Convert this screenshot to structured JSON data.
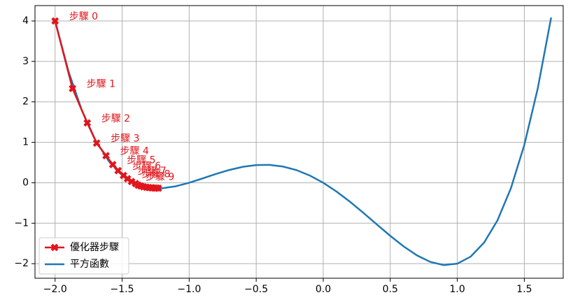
{
  "chart_data": {
    "type": "line",
    "xlim": [
      -2.15,
      1.79
    ],
    "ylim": [
      -2.36,
      4.38
    ],
    "xticks": [
      {
        "value": -2,
        "label": "−2.0"
      },
      {
        "value": -1.5,
        "label": "−1.5"
      },
      {
        "value": -1,
        "label": "−1.0"
      },
      {
        "value": -0.5,
        "label": "−0.5"
      },
      {
        "value": 0,
        "label": "0.0"
      },
      0.5,
      {
        "value": 1,
        "label": "1.0"
      },
      1.5
    ],
    "yticks": [
      {
        "value": -2,
        "label": "−2"
      },
      {
        "value": -1,
        "label": "−1"
      },
      0,
      1,
      2,
      3,
      4
    ],
    "grid": true,
    "legend": "lower left",
    "series": [
      {
        "name": "優化器步驟",
        "color": "#e0161c",
        "marker": "X",
        "x": [
          -2,
          -1.87,
          -1.76,
          -1.69,
          -1.62,
          -1.57,
          -1.53,
          -1.49,
          -1.46,
          -1.43,
          -1.4,
          -1.38,
          -1.36,
          -1.34,
          -1.32,
          -1.3,
          -1.28,
          -1.26,
          -1.245,
          -1.23
        ],
        "values": [
          4,
          2.33,
          1.48,
          0.98,
          0.67,
          0.45,
          0.3,
          0.18,
          0.1,
          0.03,
          -0.02,
          -0.06,
          -0.08,
          -0.1,
          -0.11,
          -0.12,
          -0.125,
          -0.13,
          -0.13,
          -0.135
        ],
        "point_labels": [
          "步驟 0",
          "步驟 1",
          "步驟 2",
          "步驟 3",
          "步驟 4",
          "步驟 5",
          "步驟 6",
          "步驟 7",
          "步驟 8",
          "步驟 9",
          null,
          null,
          null,
          null,
          null,
          null,
          null,
          null,
          null,
          null
        ]
      },
      {
        "name": "平方函數",
        "color": "#1f77b4",
        "x": [
          -2,
          -1.9,
          -1.8,
          -1.7,
          -1.6,
          -1.5,
          -1.4,
          -1.3,
          -1.2,
          -1.1,
          -1,
          -0.9,
          -0.8,
          -0.7,
          -0.6,
          -0.5,
          -0.4,
          -0.3,
          -0.2,
          -0.1,
          0,
          0.1,
          0.2,
          0.3,
          0.4,
          0.5,
          0.6,
          0.7,
          0.8,
          0.9,
          1,
          1.1,
          1.2,
          1.3,
          1.4,
          1.5,
          1.6,
          1.7
        ],
        "values": [
          4,
          2.753,
          1.786,
          1.059,
          0.538,
          0.1875,
          -0.022,
          -0.121,
          -0.134,
          -0.087,
          0,
          0.107,
          0.218,
          0.317,
          0.394,
          0.4375,
          0.442,
          0.401,
          0.314,
          0.179,
          0,
          -0.219,
          -0.47,
          -0.745,
          -1.03,
          -1.3125,
          -1.574,
          -1.797,
          -1.958,
          -2.035,
          -2,
          -1.825,
          -1.478,
          -0.927,
          -0.134,
          0.9375,
          2.33,
          4.085
        ]
      }
    ]
  }
}
